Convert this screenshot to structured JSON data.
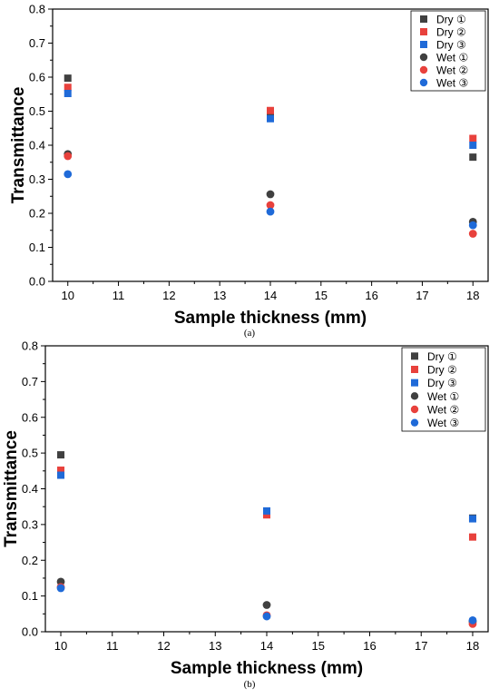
{
  "colors": {
    "dark_gray": "#404040",
    "red": "#e8413c",
    "blue": "#1f6ad8"
  },
  "chart_data": [
    {
      "type": "scatter",
      "caption": "(a)",
      "xlabel": "Sample thickness (mm)",
      "ylabel": "Transmittance",
      "xlim": [
        9.7,
        18.3
      ],
      "ylim": [
        0.0,
        0.8
      ],
      "xticks": [
        10,
        11,
        12,
        13,
        14,
        15,
        16,
        17,
        18
      ],
      "yticks": [
        0.0,
        0.1,
        0.2,
        0.3,
        0.4,
        0.5,
        0.6,
        0.7,
        0.8
      ],
      "ytick_labels": [
        "0.0",
        "0.1",
        "0.2",
        "0.3",
        "0.4",
        "0.5",
        "0.6",
        "0.7",
        "0.8"
      ],
      "grid": false,
      "legend_position": "top-right",
      "series": [
        {
          "name": "Dry ①",
          "marker": "square",
          "color": "#404040",
          "x": [
            10,
            14,
            18
          ],
          "y": [
            0.597,
            0.497,
            0.365
          ]
        },
        {
          "name": "Dry ②",
          "marker": "square",
          "color": "#e8413c",
          "x": [
            10,
            14,
            18
          ],
          "y": [
            0.57,
            0.502,
            0.42
          ]
        },
        {
          "name": "Dry ③",
          "marker": "square",
          "color": "#1f6ad8",
          "x": [
            10,
            14,
            18
          ],
          "y": [
            0.552,
            0.478,
            0.4
          ]
        },
        {
          "name": "Wet ①",
          "marker": "circle",
          "color": "#404040",
          "x": [
            10,
            14,
            18
          ],
          "y": [
            0.374,
            0.256,
            0.175
          ]
        },
        {
          "name": "Wet ②",
          "marker": "circle",
          "color": "#e8413c",
          "x": [
            10,
            14,
            18
          ],
          "y": [
            0.368,
            0.224,
            0.14
          ]
        },
        {
          "name": "Wet ③",
          "marker": "circle",
          "color": "#1f6ad8",
          "x": [
            10,
            14,
            18
          ],
          "y": [
            0.315,
            0.205,
            0.165
          ]
        }
      ]
    },
    {
      "type": "scatter",
      "caption": "(b)",
      "xlabel": "Sample thickness (mm)",
      "ylabel": "Transmittance",
      "xlim": [
        9.7,
        18.3
      ],
      "ylim": [
        0.0,
        0.8
      ],
      "xticks": [
        10,
        11,
        12,
        13,
        14,
        15,
        16,
        17,
        18
      ],
      "yticks": [
        0.0,
        0.1,
        0.2,
        0.3,
        0.4,
        0.5,
        0.6,
        0.7,
        0.8
      ],
      "ytick_labels": [
        "0.0",
        "0.1",
        "0.2",
        "0.3",
        "0.4",
        "0.5",
        "0.6",
        "0.7",
        "0.8"
      ],
      "grid": false,
      "legend_position": "top-right",
      "series": [
        {
          "name": "Dry ①",
          "marker": "square",
          "color": "#404040",
          "x": [
            10,
            14,
            18
          ],
          "y": [
            0.495,
            0.33,
            0.318
          ]
        },
        {
          "name": "Dry ②",
          "marker": "square",
          "color": "#e8413c",
          "x": [
            10,
            14,
            18
          ],
          "y": [
            0.452,
            0.327,
            0.265
          ]
        },
        {
          "name": "Dry ③",
          "marker": "square",
          "color": "#1f6ad8",
          "x": [
            10,
            14,
            18
          ],
          "y": [
            0.438,
            0.338,
            0.316
          ]
        },
        {
          "name": "Wet ①",
          "marker": "circle",
          "color": "#404040",
          "x": [
            10,
            14,
            18
          ],
          "y": [
            0.14,
            0.075,
            0.028
          ]
        },
        {
          "name": "Wet ②",
          "marker": "circle",
          "color": "#e8413c",
          "x": [
            10,
            14,
            18
          ],
          "y": [
            0.125,
            0.046,
            0.022
          ]
        },
        {
          "name": "Wet ③",
          "marker": "circle",
          "color": "#1f6ad8",
          "x": [
            10,
            14,
            18
          ],
          "y": [
            0.122,
            0.043,
            0.032
          ]
        }
      ]
    }
  ]
}
